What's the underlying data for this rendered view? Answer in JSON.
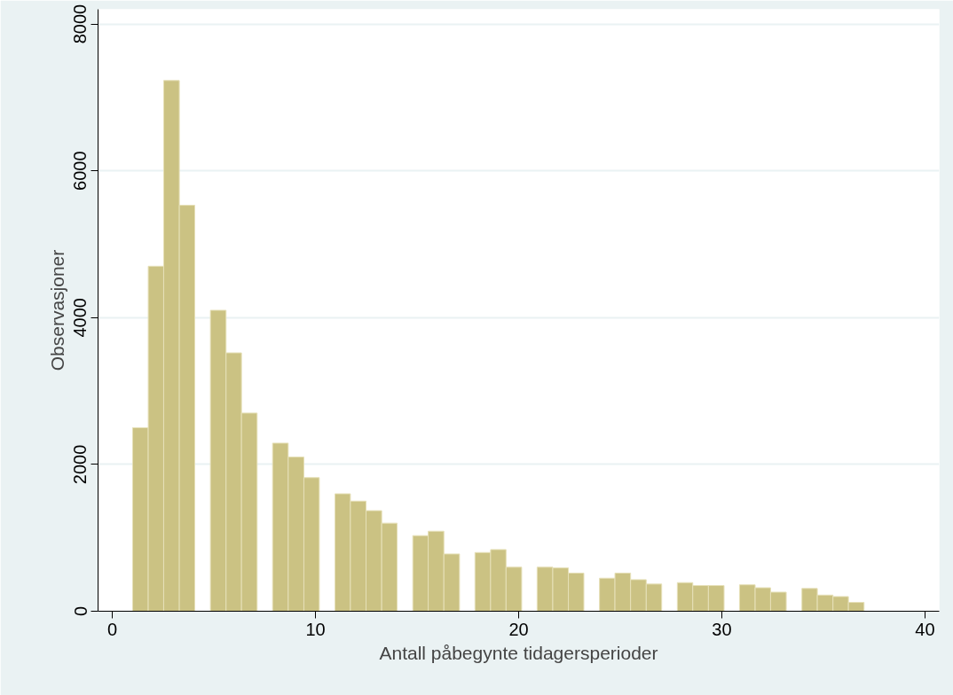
{
  "chart_data": {
    "type": "histogram",
    "xlabel": "Antall påbegynte tidagersperioder",
    "ylabel": "Observasjoner",
    "bins": [
      1,
      1.77,
      2.53,
      3.3,
      4.06,
      4.83,
      5.6,
      6.36,
      7.13,
      7.89,
      8.66,
      9.43,
      10.19,
      10.96,
      11.72,
      12.49,
      13.26,
      14.02,
      14.79,
      15.55,
      16.32,
      17.09,
      17.85,
      18.62,
      19.38,
      20.15,
      20.91,
      21.68,
      22.45,
      23.21,
      23.98,
      24.74,
      25.51,
      26.28,
      27.04,
      27.81,
      28.57,
      29.34,
      30.11,
      30.87,
      31.64,
      32.4,
      33.17,
      33.94,
      34.7,
      35.47,
      36.23,
      37
    ],
    "values": [
      2500,
      4700,
      7230,
      5530,
      0,
      4100,
      3520,
      2700,
      0,
      2290,
      2100,
      1820,
      0,
      1600,
      1500,
      1370,
      1200,
      0,
      1030,
      1090,
      780,
      0,
      800,
      840,
      600,
      0,
      600,
      590,
      520,
      0,
      450,
      520,
      430,
      370,
      0,
      390,
      350,
      350,
      0,
      360,
      320,
      260,
      0,
      310,
      220,
      200,
      120
    ],
    "color": "#cbc283",
    "xlim": [
      -0.7,
      40.7
    ],
    "ylim": [
      0,
      8200
    ],
    "xticks": [
      0,
      10,
      20,
      30,
      40
    ],
    "yticks": [
      0,
      2000,
      4000,
      6000,
      8000
    ],
    "grid": "y"
  }
}
